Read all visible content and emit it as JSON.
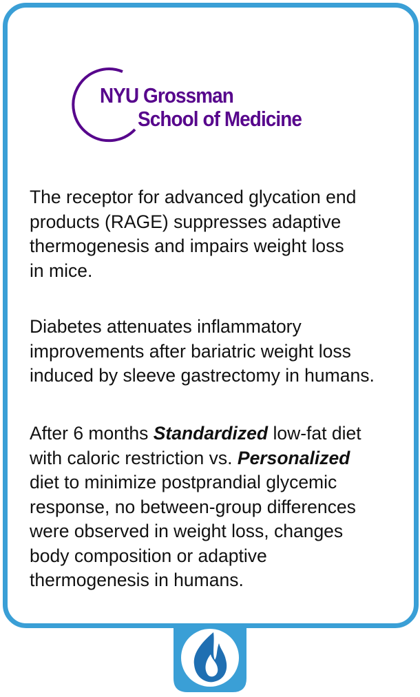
{
  "logo": {
    "line1": "NYU Grossman",
    "line2": "School of Medicine"
  },
  "paragraphs": [
    [
      "The receptor for advanced glycation end",
      "products (RAGE) suppresses adaptive",
      "thermogenesis and impairs weight loss",
      "in mice."
    ],
    [
      "Diabetes attenuates inflammatory",
      "improvements after bariatric weight loss",
      "induced by sleeve gastrectomy in humans."
    ],
    [
      [
        "After 6 months ",
        "Standardized",
        " low-fat diet"
      ],
      [
        "with caloric restriction vs. ",
        "Personalized"
      ],
      "diet to minimize postprandial glycemic",
      "response, no between-group differences",
      "were observed in weight loss, changes",
      "body composition or adaptive",
      "thermogenesis in humans."
    ]
  ]
}
